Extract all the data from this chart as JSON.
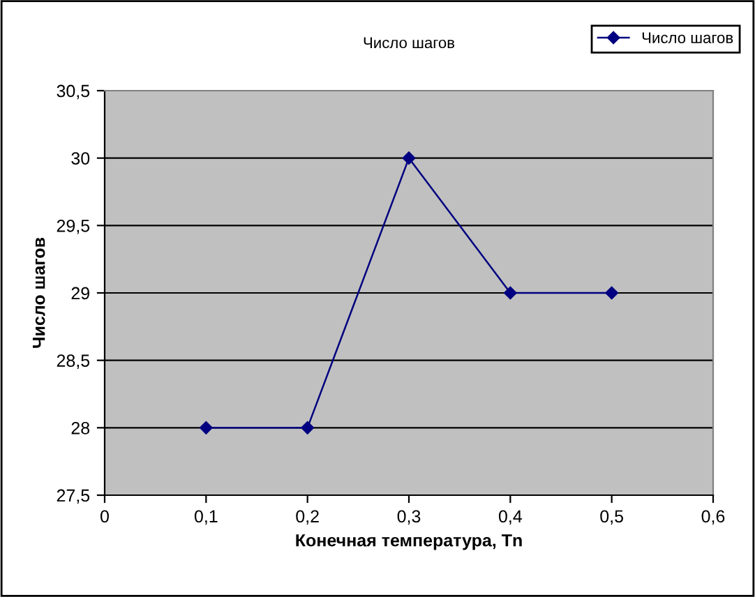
{
  "chart_data": {
    "type": "line",
    "title": "Число шагов",
    "xlabel": "Конечная температура, Tn",
    "ylabel": "Число шагов",
    "x": [
      0.1,
      0.2,
      0.3,
      0.4,
      0.5
    ],
    "series": [
      {
        "name": "Число шагов",
        "color": "#000080",
        "values": [
          28,
          28,
          30,
          29,
          29
        ]
      }
    ],
    "xlim": [
      0,
      0.6
    ],
    "xticks": [
      0,
      {
        "value": 0.1,
        "label": "0,1"
      },
      {
        "value": 0.2,
        "label": "0,2"
      },
      {
        "value": 0.3,
        "label": "0,3"
      },
      {
        "value": 0.4,
        "label": "0,4"
      },
      {
        "value": 0.5,
        "label": "0,5"
      },
      {
        "value": 0.6,
        "label": "0,6"
      }
    ],
    "ylim": [
      27.5,
      30.5
    ],
    "yticks": [
      {
        "value": 27.5,
        "label": "27,5"
      },
      28,
      {
        "value": 28.5,
        "label": "28,5"
      },
      29,
      {
        "value": 29.5,
        "label": "29,5"
      },
      30,
      {
        "value": 30.5,
        "label": "30,5"
      }
    ],
    "grid": "y",
    "legend": "top right",
    "marker": "diamond",
    "line_style": "solid"
  }
}
